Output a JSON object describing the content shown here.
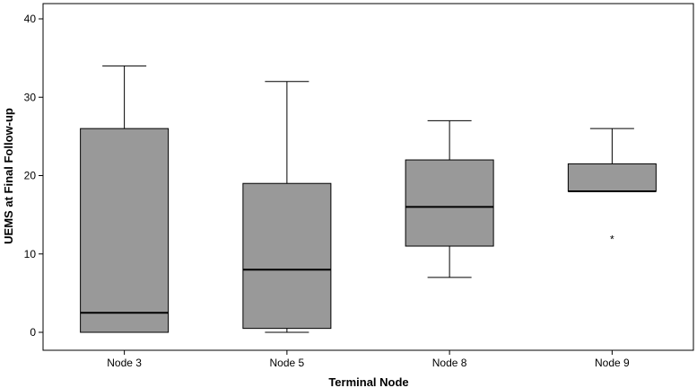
{
  "chart_data": {
    "type": "boxplot",
    "xlabel": "Terminal Node",
    "ylabel": "UEMS at Final Follow-up",
    "ylim": [
      0,
      42
    ],
    "yticks": [
      0,
      10,
      20,
      30,
      40
    ],
    "grid": false,
    "box_color": "#999999",
    "categories": [
      "Node 3",
      "Node 5",
      "Node 8",
      "Node 9"
    ],
    "boxes": [
      {
        "name": "Node 3",
        "min": 0,
        "q1": 0,
        "median": 2.5,
        "q3": 26,
        "max": 34,
        "outliers": []
      },
      {
        "name": "Node 5",
        "min": 0,
        "q1": 0.5,
        "median": 8,
        "q3": 19,
        "max": 32,
        "outliers": []
      },
      {
        "name": "Node 8",
        "min": 7,
        "q1": 11,
        "median": 16,
        "q3": 22,
        "max": 27,
        "outliers": []
      },
      {
        "name": "Node 9",
        "min": 18,
        "q1": 18,
        "median": 18,
        "q3": 21.5,
        "max": 26,
        "outliers": [
          12
        ]
      }
    ]
  }
}
